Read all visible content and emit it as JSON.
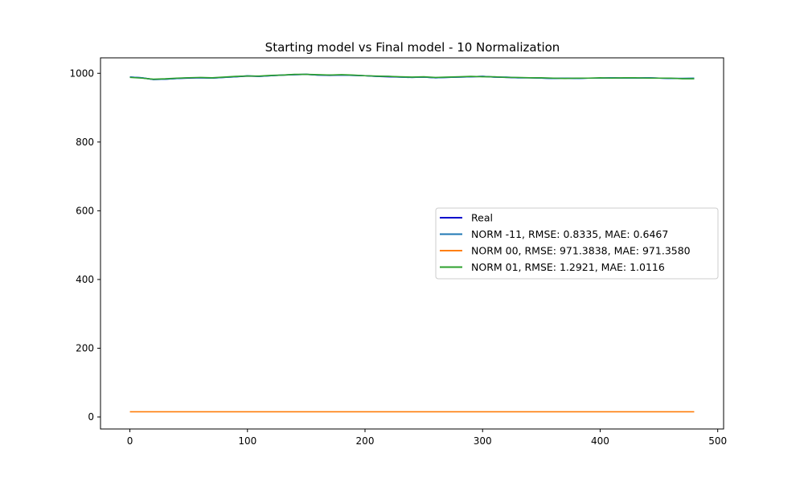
{
  "chart_data": {
    "type": "line",
    "title": "Starting model vs Final model - 10 Normalization",
    "xlabel": "",
    "ylabel": "",
    "xlim": [
      -25,
      505
    ],
    "ylim": [
      -35,
      1045
    ],
    "xticks": [
      0,
      100,
      200,
      300,
      400,
      500
    ],
    "yticks": [
      0,
      200,
      400,
      600,
      800,
      1000
    ],
    "grid": false,
    "legend_position": "center-right",
    "x": [
      0,
      10,
      20,
      30,
      40,
      50,
      60,
      70,
      80,
      90,
      100,
      110,
      120,
      130,
      140,
      150,
      160,
      170,
      180,
      190,
      200,
      210,
      220,
      230,
      240,
      250,
      260,
      270,
      280,
      290,
      300,
      310,
      320,
      330,
      340,
      350,
      360,
      370,
      380,
      390,
      400,
      410,
      420,
      430,
      440,
      450,
      460,
      470,
      480
    ],
    "series": [
      {
        "name": "Real",
        "color": "#0000cc",
        "values": [
          989,
          987,
          982,
          983,
          985,
          986,
          987,
          986,
          988,
          990,
          992,
          991,
          993,
          995,
          996,
          997,
          995,
          994,
          995,
          994,
          993,
          991,
          990,
          989,
          988,
          989,
          987,
          988,
          989,
          990,
          991,
          989,
          988,
          987,
          987,
          986,
          985,
          986,
          985,
          986,
          986,
          987,
          986,
          986,
          987,
          986,
          985,
          985,
          985
        ]
      },
      {
        "name": "NORM -11, RMSE: 0.8335, MAE: 0.6467",
        "color": "#1f77b4",
        "values": [
          989,
          987,
          982,
          983,
          985,
          987,
          987,
          986,
          988,
          990,
          993,
          991,
          993,
          995,
          996,
          997,
          995,
          995,
          995,
          994,
          993,
          991,
          991,
          989,
          988,
          989,
          987,
          988,
          989,
          990,
          991,
          989,
          989,
          987,
          987,
          986,
          985,
          986,
          985,
          986,
          986,
          987,
          986,
          986,
          987,
          986,
          985,
          985,
          986
        ]
      },
      {
        "name": "NORM 00, RMSE: 971.3838, MAE: 971.3580",
        "color": "#ff7f0e",
        "values": [
          15,
          15,
          15,
          15,
          15,
          15,
          15,
          15,
          15,
          15,
          15,
          15,
          15,
          15,
          15,
          15,
          15,
          15,
          15,
          15,
          15,
          15,
          15,
          15,
          15,
          15,
          15,
          15,
          15,
          15,
          15,
          15,
          15,
          15,
          15,
          15,
          15,
          15,
          15,
          15,
          15,
          15,
          15,
          15,
          15,
          15,
          15,
          15,
          15
        ]
      },
      {
        "name": "NORM 01, RMSE: 1.2921, MAE: 1.0116",
        "color": "#2ca02c",
        "values": [
          988,
          986,
          983,
          984,
          986,
          987,
          988,
          987,
          989,
          991,
          992,
          992,
          994,
          995,
          997,
          997,
          996,
          995,
          996,
          995,
          993,
          992,
          991,
          990,
          989,
          990,
          988,
          989,
          990,
          991,
          990,
          990,
          988,
          988,
          987,
          987,
          986,
          985,
          986,
          986,
          987,
          986,
          987,
          987,
          986,
          986,
          986,
          984,
          984
        ]
      }
    ]
  }
}
